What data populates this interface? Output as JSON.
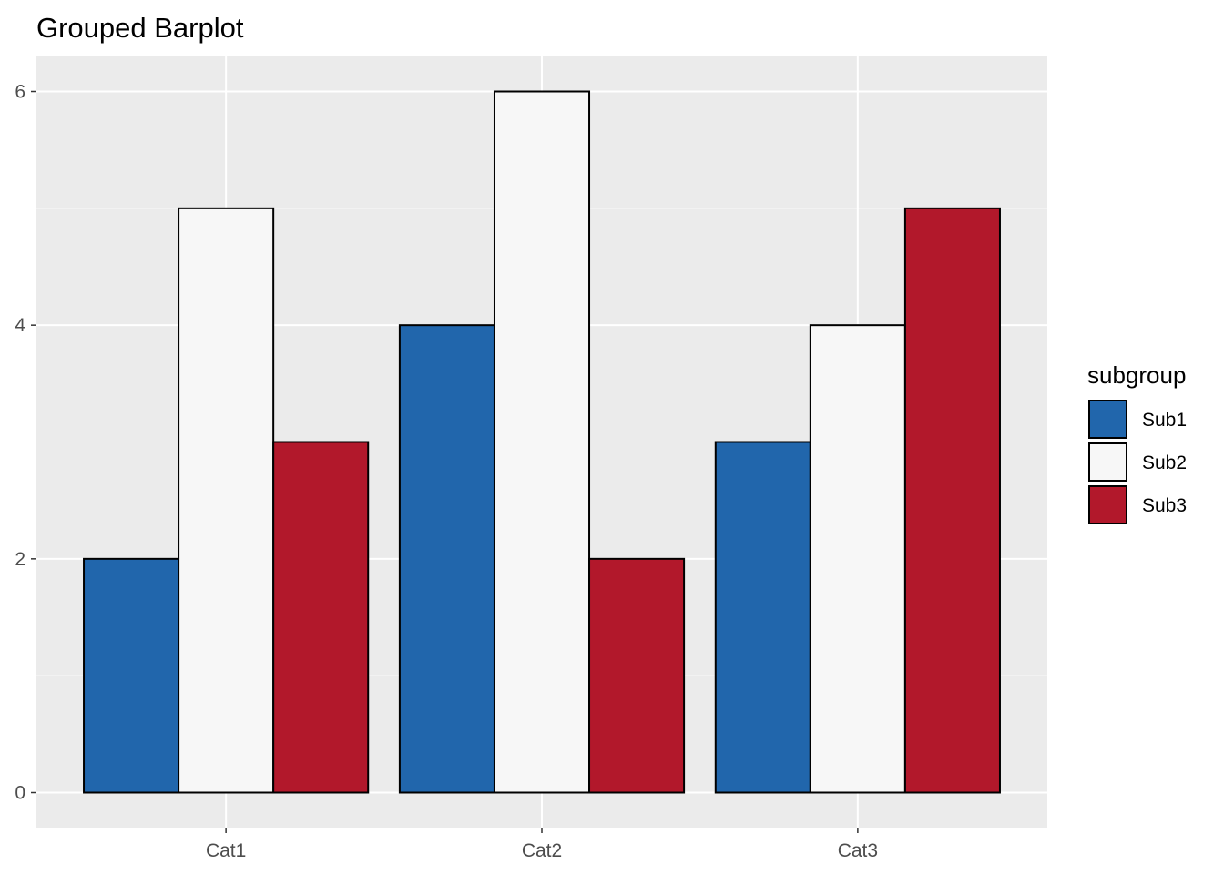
{
  "chart_data": {
    "type": "bar",
    "title": "Grouped Barplot",
    "xlabel": "",
    "ylabel": "",
    "categories": [
      "Cat1",
      "Cat2",
      "Cat3"
    ],
    "series": [
      {
        "name": "Sub1",
        "values": [
          2,
          4,
          3
        ],
        "color": "#2166ac"
      },
      {
        "name": "Sub2",
        "values": [
          5,
          6,
          4
        ],
        "color": "#f7f7f7"
      },
      {
        "name": "Sub3",
        "values": [
          3,
          2,
          5
        ],
        "color": "#b2182b"
      }
    ],
    "ylim": [
      -0.3,
      6.3
    ],
    "yticks": [
      0,
      2,
      4,
      6
    ],
    "ytick_labels": [
      "0",
      "2",
      "4",
      "6"
    ],
    "grid": true,
    "legend": {
      "title": "subgroup",
      "position": "right"
    },
    "panel_background": "#ebebeb"
  }
}
